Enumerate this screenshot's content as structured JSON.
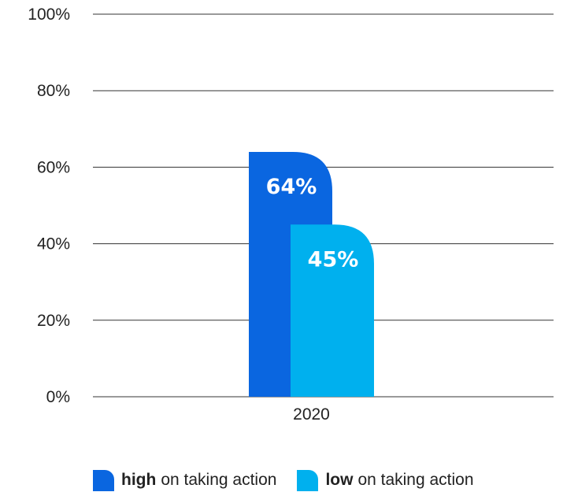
{
  "chart_data": {
    "type": "bar",
    "categories": [
      "2020"
    ],
    "series": [
      {
        "name": "high on taking action",
        "values": [
          64
        ],
        "color": "#0a66e0",
        "data_label": "64%"
      },
      {
        "name": "low on taking action",
        "values": [
          45
        ],
        "color": "#00b0ee",
        "data_label": "45%"
      }
    ],
    "y_ticks": [
      "0%",
      "20%",
      "40%",
      "60%",
      "80%",
      "100%"
    ],
    "ylim": [
      0,
      100
    ],
    "grid": true,
    "legend_position": "bottom"
  },
  "legend": [
    {
      "strong": "high",
      "rest": "on taking action",
      "color": "#0a66e0"
    },
    {
      "strong": "low",
      "rest": "on taking action",
      "color": "#00b0ee"
    }
  ]
}
